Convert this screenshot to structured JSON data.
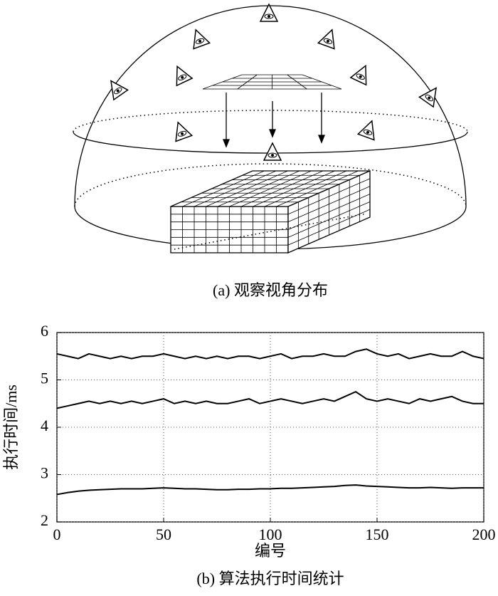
{
  "figure_a": {
    "caption": "(a) 观察视角分布"
  },
  "chart_data": {
    "type": "line",
    "caption": "(b) 算法执行时间统计",
    "x_label": "编号",
    "y_label": "执行时间/ms",
    "x": [
      0,
      5,
      10,
      15,
      20,
      25,
      30,
      35,
      40,
      45,
      50,
      55,
      60,
      65,
      70,
      75,
      80,
      85,
      90,
      95,
      100,
      105,
      110,
      115,
      120,
      125,
      130,
      135,
      140,
      145,
      150,
      155,
      160,
      165,
      170,
      175,
      180,
      185,
      190,
      195,
      200
    ],
    "series": [
      {
        "color": "#000000",
        "values": [
          5.55,
          5.5,
          5.45,
          5.55,
          5.5,
          5.45,
          5.5,
          5.45,
          5.5,
          5.5,
          5.55,
          5.5,
          5.45,
          5.5,
          5.45,
          5.5,
          5.45,
          5.5,
          5.5,
          5.45,
          5.5,
          5.55,
          5.45,
          5.5,
          5.5,
          5.55,
          5.5,
          5.5,
          5.6,
          5.65,
          5.55,
          5.5,
          5.55,
          5.45,
          5.5,
          5.55,
          5.5,
          5.5,
          5.6,
          5.5,
          5.45
        ]
      },
      {
        "color": "#000000",
        "values": [
          4.4,
          4.45,
          4.5,
          4.55,
          4.5,
          4.55,
          4.5,
          4.55,
          4.5,
          4.55,
          4.6,
          4.5,
          4.55,
          4.5,
          4.55,
          4.5,
          4.5,
          4.55,
          4.6,
          4.5,
          4.55,
          4.6,
          4.55,
          4.5,
          4.55,
          4.6,
          4.55,
          4.65,
          4.75,
          4.6,
          4.55,
          4.6,
          4.55,
          4.5,
          4.6,
          4.55,
          4.6,
          4.65,
          4.55,
          4.5,
          4.5
        ]
      },
      {
        "color": "#000000",
        "values": [
          2.58,
          2.62,
          2.65,
          2.67,
          2.68,
          2.69,
          2.7,
          2.7,
          2.7,
          2.71,
          2.72,
          2.71,
          2.7,
          2.7,
          2.69,
          2.68,
          2.68,
          2.69,
          2.69,
          2.7,
          2.7,
          2.71,
          2.71,
          2.72,
          2.73,
          2.74,
          2.75,
          2.77,
          2.78,
          2.76,
          2.75,
          2.74,
          2.73,
          2.72,
          2.72,
          2.73,
          2.72,
          2.71,
          2.72,
          2.72,
          2.72
        ]
      }
    ],
    "xlim": [
      0,
      200
    ],
    "xticks": [
      0,
      50,
      100,
      150,
      200
    ],
    "ylim": [
      2,
      6
    ],
    "yticks": [
      2,
      3,
      4,
      5,
      6
    ],
    "grid": true
  }
}
